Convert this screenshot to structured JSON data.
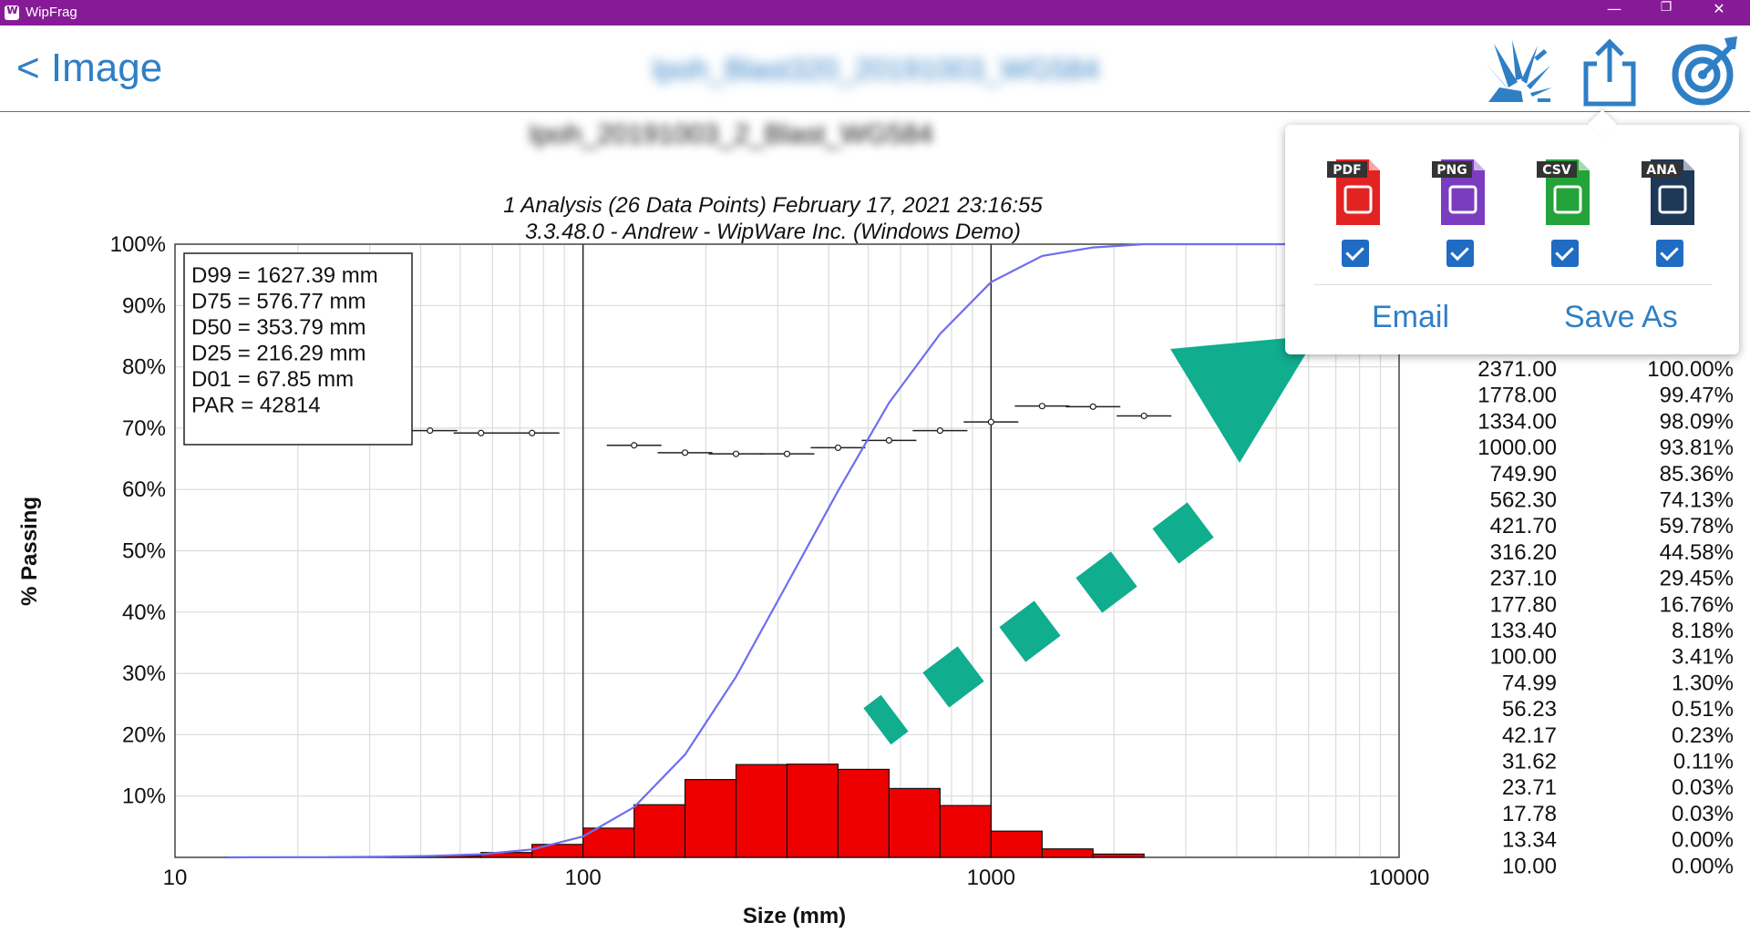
{
  "window": {
    "title": "WipFrag",
    "minimize": "—",
    "restore": "❐",
    "close": "✕"
  },
  "header": {
    "back_label": "< Image",
    "title_blurred": "Ipoh_Blast320_20191003_WG584",
    "icons": [
      "blast-icon",
      "share-icon",
      "target-icon"
    ]
  },
  "file_title_blurred": "Ipoh_20191003_2_Blast_WG584",
  "export_popup": {
    "formats": [
      {
        "label": "PDF",
        "checked": true,
        "color": "#e32322"
      },
      {
        "label": "PNG",
        "checked": true,
        "color": "#7b3dbf"
      },
      {
        "label": "CSV",
        "checked": true,
        "color": "#24a33a"
      },
      {
        "label": "ANA",
        "checked": true,
        "color": "#1e3858"
      }
    ],
    "email_label": "Email",
    "save_as_label": "Save As"
  },
  "colors": {
    "accent": "#2f7fc5",
    "titlebar": "#871b97",
    "arrow": "#10ad8e",
    "curve": "#6e6ef0",
    "bars": "#ee0000"
  },
  "chart_data": {
    "type": "bar",
    "subtitle_lines": [
      "1 Analysis (26 Data Points)      February 17, 2021 23:16:55",
      "3.3.48.0  -  Andrew - WipWare Inc. (Windows Demo)"
    ],
    "xlabel": "Size (mm)",
    "ylabel": "% Passing",
    "xscale": "log",
    "xlim": [
      10,
      10000
    ],
    "ylim": [
      0,
      100
    ],
    "x_ticks": [
      "10",
      "100",
      "1000",
      "10000"
    ],
    "y_ticks": [
      "10%",
      "20%",
      "30%",
      "40%",
      "50%",
      "60%",
      "70%",
      "80%",
      "90%",
      "100%"
    ],
    "stats_box": [
      "D99 = 1627.39 mm",
      "D75 = 576.77 mm",
      "D50 = 353.79 mm",
      "D25 = 216.29 mm",
      "D01 = 67.85 mm",
      "PAR = 42814"
    ],
    "table": {
      "size": [
        "2371.00",
        "1778.00",
        "1334.00",
        "1000.00",
        "749.90",
        "562.30",
        "421.70",
        "316.20",
        "237.10",
        "177.80",
        "133.40",
        "100.00",
        "74.99",
        "56.23",
        "42.17",
        "31.62",
        "23.71",
        "17.78",
        "13.34",
        "10.00"
      ],
      "passing": [
        "100.00%",
        "99.47%",
        "98.09%",
        "93.81%",
        "85.36%",
        "74.13%",
        "59.78%",
        "44.58%",
        "29.45%",
        "16.76%",
        "8.18%",
        "3.41%",
        "1.30%",
        "0.51%",
        "0.23%",
        "0.11%",
        "0.03%",
        "0.03%",
        "0.00%",
        "0.00%"
      ]
    },
    "series": [
      {
        "type": "line",
        "x": [
          13.34,
          17.78,
          23.71,
          31.62,
          42.17,
          56.23,
          74.99,
          100.0,
          133.4,
          177.8,
          237.1,
          316.2,
          421.7,
          562.3,
          749.9,
          1000.0,
          1334.0,
          1778.0,
          2371.0,
          10000.0
        ],
        "y": [
          0.0,
          0.03,
          0.03,
          0.11,
          0.23,
          0.51,
          1.3,
          3.41,
          8.18,
          16.76,
          29.45,
          44.58,
          59.78,
          74.13,
          85.36,
          93.81,
          98.09,
          99.47,
          100.0,
          100.0
        ]
      },
      {
        "type": "bar",
        "bins": [
          [
            13.34,
            17.78
          ],
          [
            17.78,
            23.71
          ],
          [
            23.71,
            31.62
          ],
          [
            31.62,
            42.17
          ],
          [
            42.17,
            56.23
          ],
          [
            56.23,
            74.99
          ],
          [
            74.99,
            100
          ],
          [
            100,
            133.4
          ],
          [
            133.4,
            177.8
          ],
          [
            177.8,
            237.1
          ],
          [
            237.1,
            316.2
          ],
          [
            316.2,
            421.7
          ],
          [
            421.7,
            562.3
          ],
          [
            562.3,
            749.9
          ],
          [
            749.9,
            1000
          ],
          [
            1000,
            1334
          ],
          [
            1334,
            1778
          ],
          [
            1778,
            2371
          ]
        ],
        "y": [
          0.03,
          0.0,
          0.08,
          0.12,
          0.28,
          0.79,
          2.11,
          4.77,
          8.58,
          12.69,
          15.13,
          15.2,
          14.35,
          11.23,
          8.45,
          4.28,
          1.38,
          0.53
        ]
      },
      {
        "type": "scatter",
        "x": [
          42.17,
          56.23,
          74.99,
          133.4,
          177.8,
          237.1,
          316.2,
          421.7,
          562.3,
          749.9,
          1000,
          1334,
          1778,
          2371
        ],
        "y": [
          69.6,
          69.2,
          69.2,
          67.2,
          66.0,
          65.8,
          65.8,
          66.8,
          68.0,
          69.6,
          71.0,
          73.6,
          73.5,
          72.0
        ]
      }
    ]
  }
}
